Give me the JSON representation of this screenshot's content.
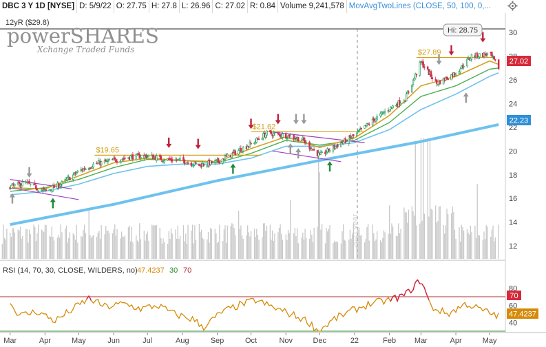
{
  "header": {
    "symbol": "DBC 3 Y 1D [NYSE]",
    "date": "D: 5/9/22",
    "open": "O: 27.75",
    "high": "H: 27.8",
    "low": "L: 26.96",
    "close": "C: 27.02",
    "range": "R: 0.84",
    "volume_label": "Volume",
    "volume_value": "9,241,578",
    "study": "MovAvgTwoLines (CLOSE, 50, 100, 0,..."
  },
  "icons": {
    "settings": "settings-icon"
  },
  "logo": {
    "line1": "powerSHARES",
    "line2": "Xchange Traded Funds"
  },
  "annotations": {
    "high_52w": "12yR ($29.8)",
    "hi_bubble": "Hi: 28.75",
    "level1": "$19.65",
    "level2": "$21.62",
    "level3": "$27.89",
    "year_mark": "2021 year"
  },
  "price_badges": {
    "last": "27.02",
    "ma": "22.23"
  },
  "rsi": {
    "label": "RSI (14, 70, 30, CLOSE, WILDERS, no)",
    "value": "47.4237",
    "low": "30",
    "high": "70",
    "badge_value": "47.4237",
    "badge_high": "70"
  },
  "colors": {
    "up": "#22a05a",
    "down": "#d03050",
    "ma_fast": "#d5a020",
    "ma_mid": "#4caf50",
    "ma_slow": "#6ec2ee",
    "volume": "#c8c8c8",
    "rsi": "#d68a0a",
    "rsi_hot": "#cc2244",
    "overbought": "#b03030",
    "oversold": "#2e8b2e",
    "badge_last": "#d62a3a",
    "badge_ma": "#2f8fd6",
    "trend_purple": "#a040c0",
    "level": "#d4a017"
  },
  "chart_data": [
    {
      "type": "candlestick",
      "title": "DBC 3 Y 1D [NYSE]",
      "ylim": [
        10.9,
        30.3
      ],
      "y_ticks": [
        12,
        14,
        16,
        18,
        20,
        22,
        24,
        26,
        28,
        30
      ],
      "x_tick_labels": [
        "Mar",
        "Apr",
        "May",
        "Jun",
        "Jul",
        "Aug",
        "Sep",
        "Oct",
        "Nov",
        "Dec",
        "22",
        "Feb",
        "Mar",
        "Apr",
        "May"
      ],
      "close_points": [
        [
          "2021-03-01",
          17.0
        ],
        [
          "2021-03-15",
          17.3
        ],
        [
          "2021-04-01",
          16.6
        ],
        [
          "2021-04-15",
          17.2
        ],
        [
          "2021-05-01",
          18.3
        ],
        [
          "2021-05-15",
          18.9
        ],
        [
          "2021-06-01",
          19.2
        ],
        [
          "2021-06-15",
          19.5
        ],
        [
          "2021-07-01",
          19.6
        ],
        [
          "2021-07-15",
          19.3
        ],
        [
          "2021-08-01",
          19.2
        ],
        [
          "2021-08-15",
          18.8
        ],
        [
          "2021-09-01",
          19.1
        ],
        [
          "2021-09-15",
          19.8
        ],
        [
          "2021-10-01",
          20.6
        ],
        [
          "2021-10-15",
          21.5
        ],
        [
          "2021-11-01",
          21.3
        ],
        [
          "2021-11-15",
          21.0
        ],
        [
          "2021-12-01",
          19.6
        ],
        [
          "2021-12-15",
          20.4
        ],
        [
          "2022-01-01",
          21.3
        ],
        [
          "2022-01-15",
          22.4
        ],
        [
          "2022-02-01",
          23.6
        ],
        [
          "2022-02-15",
          24.4
        ],
        [
          "2022-03-01",
          27.5
        ],
        [
          "2022-03-15",
          25.7
        ],
        [
          "2022-04-01",
          26.6
        ],
        [
          "2022-04-15",
          28.0
        ],
        [
          "2022-05-01",
          28.2
        ],
        [
          "2022-05-09",
          27.02
        ]
      ],
      "ma_fast": [
        [
          "2021-03-01",
          16.9
        ],
        [
          "2021-04-01",
          16.8
        ],
        [
          "2021-05-01",
          17.9
        ],
        [
          "2021-06-01",
          19.0
        ],
        [
          "2021-07-01",
          19.4
        ],
        [
          "2021-08-01",
          19.2
        ],
        [
          "2021-09-01",
          19.1
        ],
        [
          "2021-10-01",
          20.2
        ],
        [
          "2021-11-01",
          21.2
        ],
        [
          "2021-12-01",
          20.3
        ],
        [
          "2022-01-01",
          21.1
        ],
        [
          "2022-02-01",
          23.0
        ],
        [
          "2022-03-01",
          25.5
        ],
        [
          "2022-04-01",
          26.3
        ],
        [
          "2022-05-01",
          27.6
        ],
        [
          "2022-05-09",
          27.3
        ]
      ],
      "ma_mid": [
        [
          "2021-03-01",
          16.6
        ],
        [
          "2021-04-01",
          16.9
        ],
        [
          "2021-05-01",
          17.6
        ],
        [
          "2021-06-01",
          18.6
        ],
        [
          "2021-07-01",
          19.3
        ],
        [
          "2021-08-01",
          19.2
        ],
        [
          "2021-09-01",
          19.0
        ],
        [
          "2021-10-01",
          19.8
        ],
        [
          "2021-11-01",
          20.9
        ],
        [
          "2021-12-01",
          20.5
        ],
        [
          "2022-01-01",
          20.9
        ],
        [
          "2022-02-01",
          22.4
        ],
        [
          "2022-03-01",
          24.6
        ],
        [
          "2022-04-01",
          25.5
        ],
        [
          "2022-05-01",
          26.9
        ],
        [
          "2022-05-09",
          27.0
        ]
      ],
      "ma_50": [
        [
          "2021-03-01",
          16.3
        ],
        [
          "2021-04-01",
          16.6
        ],
        [
          "2021-05-01",
          17.2
        ],
        [
          "2021-06-01",
          18.1
        ],
        [
          "2021-07-01",
          18.7
        ],
        [
          "2021-08-01",
          18.9
        ],
        [
          "2021-09-01",
          18.9
        ],
        [
          "2021-10-01",
          19.4
        ],
        [
          "2021-11-01",
          20.4
        ],
        [
          "2021-12-01",
          20.4
        ],
        [
          "2022-01-01",
          20.7
        ],
        [
          "2022-02-01",
          21.8
        ],
        [
          "2022-03-01",
          23.5
        ],
        [
          "2022-04-01",
          24.8
        ],
        [
          "2022-05-01",
          26.3
        ],
        [
          "2022-05-09",
          26.6
        ]
      ],
      "ma_200": [
        [
          "2021-03-01",
          13.8
        ],
        [
          "2021-06-01",
          15.5
        ],
        [
          "2021-09-01",
          17.5
        ],
        [
          "2021-12-01",
          19.2
        ],
        [
          "2022-03-01",
          20.8
        ],
        [
          "2022-05-09",
          22.23
        ]
      ],
      "levels": [
        {
          "label": "$19.65",
          "value": 19.65,
          "from": "2021-05-15",
          "to": "2021-10-10"
        },
        {
          "label": "$21.62",
          "value": 21.62,
          "from": "2021-10-01",
          "to": "2022-01-10"
        },
        {
          "label": "$27.89",
          "value": 27.89,
          "from": "2022-02-25",
          "to": "2022-05-05"
        }
      ],
      "high_52w": 29.8,
      "hi_marker": 28.75,
      "last": 27.02,
      "ma_last": 22.23
    },
    {
      "type": "bar",
      "title": "Volume",
      "series": [
        {
          "name": "Volume",
          "note": "daily volume, relative scale"
        }
      ]
    },
    {
      "type": "line",
      "title": "RSI (14, 70, 30, CLOSE, WILDERS, no)",
      "ylim": [
        30,
        94
      ],
      "y_ticks": [
        40,
        60,
        80
      ],
      "overbought": 70,
      "oversold": 30,
      "points": [
        [
          "2021-03-01",
          62
        ],
        [
          "2021-03-10",
          48
        ],
        [
          "2021-03-25",
          53
        ],
        [
          "2021-04-10",
          42
        ],
        [
          "2021-04-25",
          55
        ],
        [
          "2021-05-10",
          68
        ],
        [
          "2021-05-25",
          58
        ],
        [
          "2021-06-10",
          62
        ],
        [
          "2021-06-25",
          56
        ],
        [
          "2021-07-10",
          60
        ],
        [
          "2021-07-25",
          50
        ],
        [
          "2021-08-10",
          44
        ],
        [
          "2021-08-20",
          35
        ],
        [
          "2021-09-05",
          52
        ],
        [
          "2021-09-20",
          60
        ],
        [
          "2021-10-05",
          66
        ],
        [
          "2021-10-20",
          58
        ],
        [
          "2021-11-05",
          50
        ],
        [
          "2021-11-20",
          42
        ],
        [
          "2021-11-30",
          30
        ],
        [
          "2021-12-15",
          45
        ],
        [
          "2022-01-01",
          55
        ],
        [
          "2022-01-15",
          62
        ],
        [
          "2022-02-01",
          66
        ],
        [
          "2022-02-15",
          72
        ],
        [
          "2022-03-01",
          90
        ],
        [
          "2022-03-10",
          58
        ],
        [
          "2022-03-25",
          50
        ],
        [
          "2022-04-10",
          62
        ],
        [
          "2022-04-25",
          54
        ],
        [
          "2022-05-09",
          47.4237
        ]
      ]
    }
  ]
}
